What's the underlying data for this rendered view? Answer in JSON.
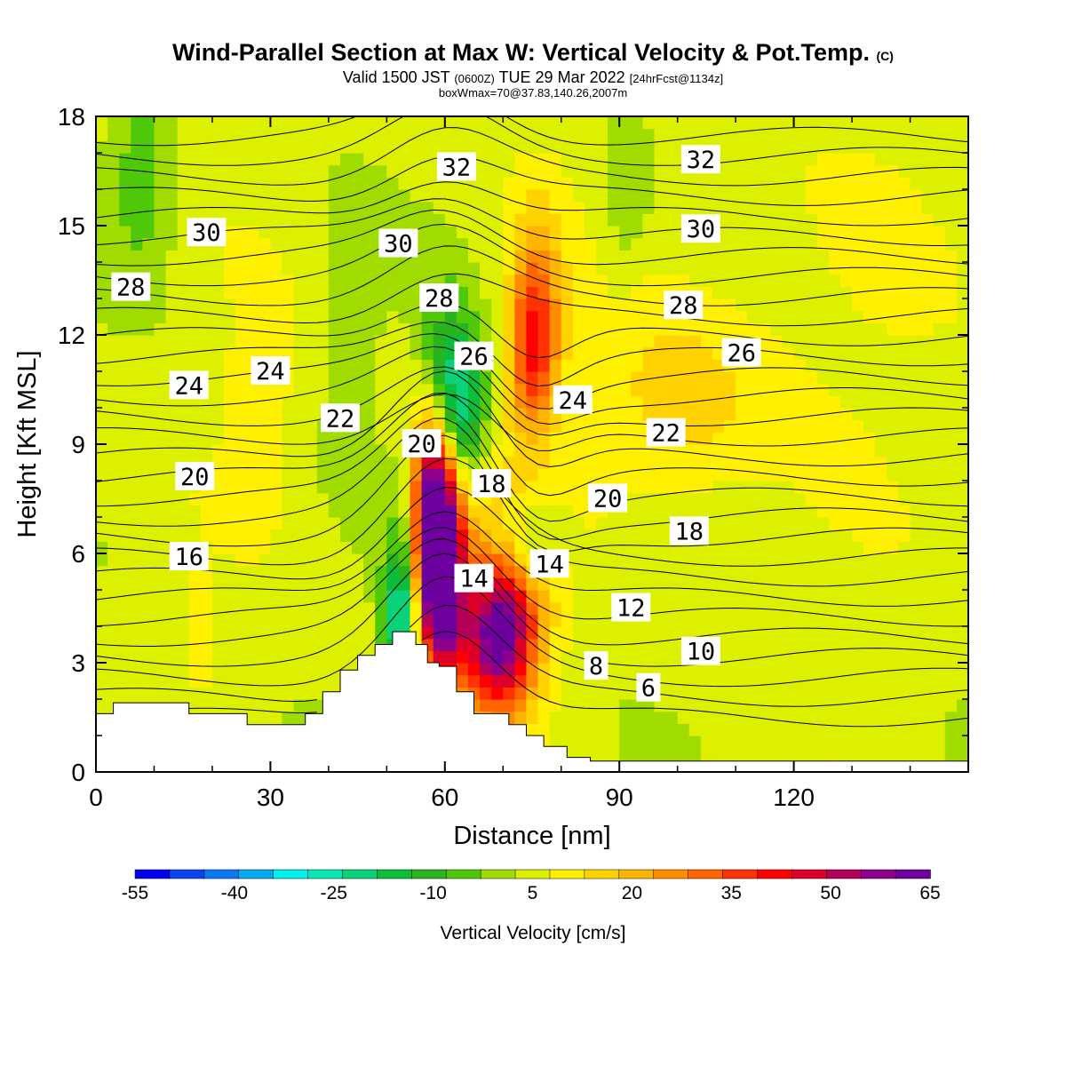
{
  "title": {
    "main": "Wind-Parallel Section at Max W: Vertical Velocity & Pot.Temp.",
    "copyright": "(C)",
    "valid_prefix": "Valid 1500 JST",
    "valid_utc": "(0600Z)",
    "valid_date": "TUE 29 Mar 2022",
    "forecast": "[24hrFcst@1134z]",
    "box_info": "boxWmax=70@37.83,140.26,2007m"
  },
  "colors": {
    "background": "#ffffff",
    "terrain": "#ffffff",
    "contour_line": "#000000",
    "velocity_scale": [
      "#0000f0",
      "#0a46f0",
      "#0a78f0",
      "#00aaf0",
      "#00f0f0",
      "#0ae6b4",
      "#0ad278",
      "#0abe3c",
      "#28b41e",
      "#50c80a",
      "#a0dc00",
      "#dcf000",
      "#fff000",
      "#ffd200",
      "#ffb400",
      "#ff8c00",
      "#ff6400",
      "#ff3200",
      "#ff0000",
      "#dc0028",
      "#b4005a",
      "#8c008c",
      "#6e00a0"
    ]
  },
  "chart_data": {
    "type": "heatmap",
    "title": "Wind-Parallel Section at Max W: Vertical Velocity & Pot.Temp.",
    "xlabel": "Distance [nm]",
    "ylabel": "Height [Kft MSL]",
    "xlim": [
      0,
      150
    ],
    "ylim": [
      0,
      18
    ],
    "x_ticks": [
      0,
      30,
      60,
      90,
      120
    ],
    "y_ticks": [
      0,
      3,
      6,
      9,
      12,
      15,
      18
    ],
    "colorbar": {
      "title": "Vertical Velocity [cm/s]",
      "min": -55,
      "max": 65,
      "step": 5,
      "tick_labels": [
        "-55",
        "-40",
        "-25",
        "-10",
        "5",
        "20",
        "35",
        "50",
        "65"
      ]
    },
    "contour_variable": "Potential Temperature",
    "contour_labels": [
      {
        "value": "32",
        "x": 62,
        "y": 16.6
      },
      {
        "value": "32",
        "x": 104,
        "y": 16.8
      },
      {
        "value": "30",
        "x": 19,
        "y": 14.8
      },
      {
        "value": "30",
        "x": 52,
        "y": 14.5
      },
      {
        "value": "30",
        "x": 104,
        "y": 14.9
      },
      {
        "value": "28",
        "x": 6,
        "y": 13.3
      },
      {
        "value": "28",
        "x": 59,
        "y": 13.0
      },
      {
        "value": "28",
        "x": 101,
        "y": 12.8
      },
      {
        "value": "26",
        "x": 65,
        "y": 11.4
      },
      {
        "value": "26",
        "x": 111,
        "y": 11.5
      },
      {
        "value": "24",
        "x": 16,
        "y": 10.6
      },
      {
        "value": "24",
        "x": 30,
        "y": 11.0
      },
      {
        "value": "24",
        "x": 82,
        "y": 10.2
      },
      {
        "value": "22",
        "x": 42,
        "y": 9.7
      },
      {
        "value": "22",
        "x": 98,
        "y": 9.3
      },
      {
        "value": "20",
        "x": 17,
        "y": 8.1
      },
      {
        "value": "20",
        "x": 56,
        "y": 9.0
      },
      {
        "value": "20",
        "x": 88,
        "y": 7.5
      },
      {
        "value": "18",
        "x": 68,
        "y": 7.9
      },
      {
        "value": "18",
        "x": 102,
        "y": 6.6
      },
      {
        "value": "16",
        "x": 16,
        "y": 5.9
      },
      {
        "value": "14",
        "x": 65,
        "y": 5.3
      },
      {
        "value": "14",
        "x": 78,
        "y": 5.7
      },
      {
        "value": "12",
        "x": 92,
        "y": 4.5
      },
      {
        "value": "10",
        "x": 104,
        "y": 3.3
      },
      {
        "value": "8",
        "x": 86,
        "y": 2.9
      },
      {
        "value": "6",
        "x": 95,
        "y": 2.3
      }
    ],
    "terrain_profile": {
      "x": [
        0,
        3,
        3,
        16,
        16,
        26,
        26,
        36,
        36,
        39,
        39,
        42,
        42,
        45,
        45,
        48,
        48,
        51,
        51,
        55,
        55,
        57,
        57,
        59,
        59,
        62,
        62,
        65,
        65,
        71,
        71,
        74,
        74,
        77,
        77,
        81,
        81,
        85,
        85,
        150
      ],
      "height": [
        1.6,
        1.6,
        1.9,
        1.9,
        1.6,
        1.6,
        1.3,
        1.3,
        1.6,
        1.6,
        2.2,
        2.2,
        2.8,
        2.8,
        3.2,
        3.2,
        3.5,
        3.5,
        3.85,
        3.85,
        3.5,
        3.5,
        3.0,
        3.0,
        2.9,
        2.9,
        2.2,
        2.2,
        1.6,
        1.6,
        1.3,
        1.3,
        1.0,
        1.0,
        0.7,
        0.7,
        0.4,
        0.4,
        0.3,
        0.3
      ]
    },
    "velocity_features": [
      {
        "x": 58,
        "y": 6.6,
        "value": 65,
        "sx": 2.5,
        "sy": 1.9
      },
      {
        "x": 60,
        "y": 5.2,
        "value": 45,
        "sx": 3,
        "sy": 2.2
      },
      {
        "x": 69,
        "y": 3.6,
        "value": 40,
        "sx": 4,
        "sy": 1.3
      },
      {
        "x": 71,
        "y": 4.8,
        "value": 25,
        "sx": 5,
        "sy": 2
      },
      {
        "x": 75,
        "y": 11.5,
        "value": 25,
        "sx": 3,
        "sy": 1.6
      },
      {
        "x": 76,
        "y": 13,
        "value": 15,
        "sx": 3,
        "sy": 2
      },
      {
        "x": 52,
        "y": 4.2,
        "value": -25,
        "sx": 2,
        "sy": 1
      },
      {
        "x": 54,
        "y": 5.5,
        "value": -15,
        "sx": 2.5,
        "sy": 1.6
      },
      {
        "x": 63,
        "y": 9.8,
        "value": -25,
        "sx": 3,
        "sy": 1.5
      },
      {
        "x": 60,
        "y": 11.3,
        "value": -12,
        "sx": 3,
        "sy": 1.5
      },
      {
        "x": 74,
        "y": 6.3,
        "value": -18,
        "sx": 4,
        "sy": 0.9
      },
      {
        "x": 8,
        "y": 16.5,
        "value": -10,
        "sx": 4,
        "sy": 2
      },
      {
        "x": 91,
        "y": 16,
        "value": -7,
        "sx": 3,
        "sy": 2
      },
      {
        "x": 44,
        "y": 12.5,
        "value": -7,
        "sx": 3,
        "sy": 2
      },
      {
        "x": 28,
        "y": 10,
        "value": 8,
        "sx": 4,
        "sy": 2
      },
      {
        "x": 18,
        "y": 3.8,
        "value": 8,
        "sx": 2,
        "sy": 1
      },
      {
        "x": 100,
        "y": 10,
        "value": 10,
        "sx": 10,
        "sy": 2
      },
      {
        "x": 120,
        "y": 13,
        "value": 3,
        "sx": 20,
        "sy": 4
      }
    ]
  }
}
